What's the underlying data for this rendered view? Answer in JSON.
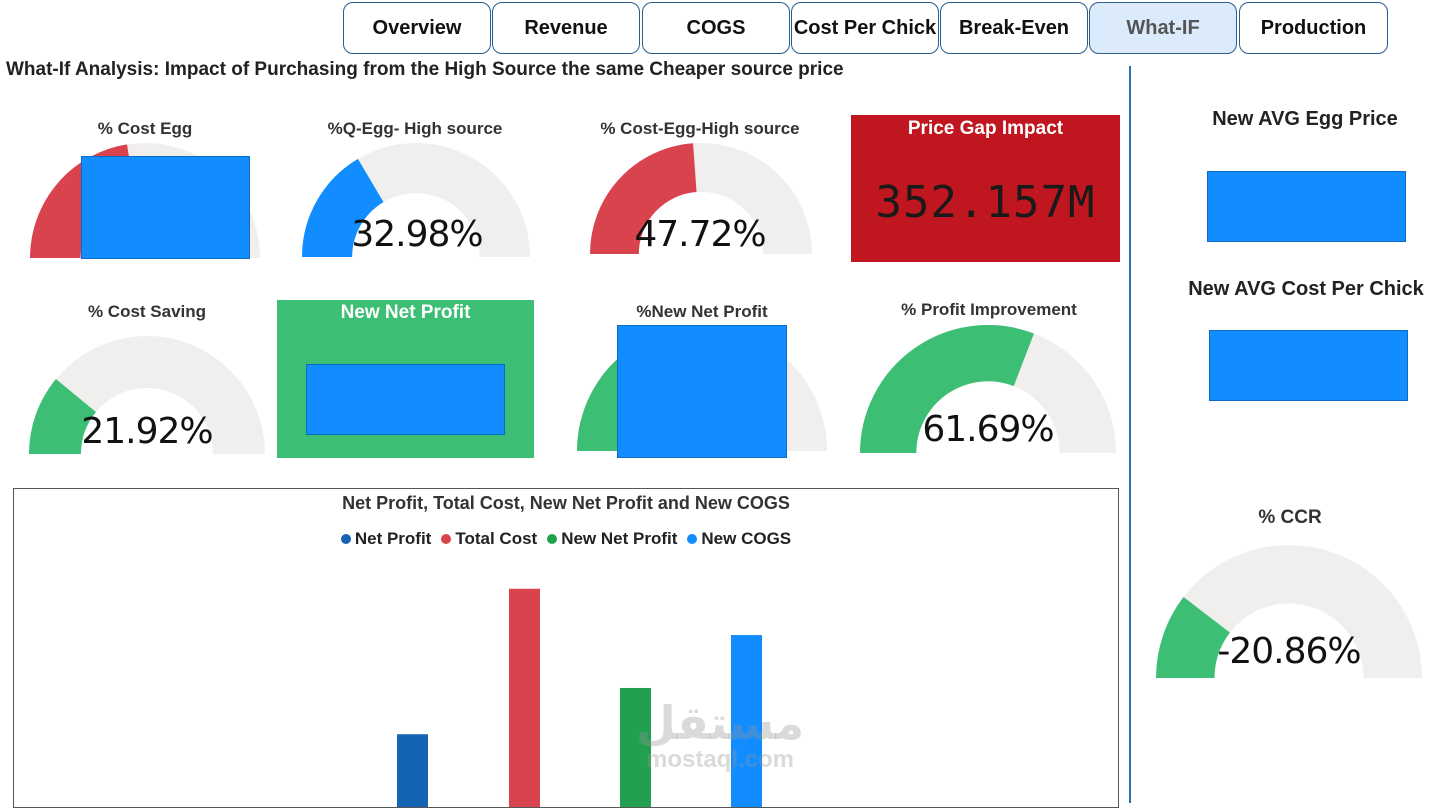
{
  "tabs": [
    {
      "label": "Overview",
      "active": false
    },
    {
      "label": "Revenue",
      "active": false
    },
    {
      "label": "COGS",
      "active": false
    },
    {
      "label": "Cost Per Chick",
      "active": false
    },
    {
      "label": "Break-Even",
      "active": false
    },
    {
      "label": "What-IF",
      "active": true
    },
    {
      "label": "Production",
      "active": false
    }
  ],
  "page_title": "What-If Analysis: Impact of Purchasing from the High Source the same Cheaper source price",
  "gauges": {
    "cost_egg": {
      "title": "% Cost Egg",
      "fill": 0.45,
      "color": "#d9434e"
    },
    "q_egg_high": {
      "title": "%Q-Egg- High source",
      "value": "32.98%",
      "fill": 0.3298,
      "color": "#118dff"
    },
    "cost_egg_high": {
      "title": "% Cost-Egg-High source",
      "value": "47.72%",
      "fill": 0.4772,
      "color": "#d9434e"
    },
    "cost_saving": {
      "title": "% Cost Saving",
      "value": "21.92%",
      "fill": 0.2192,
      "color": "#3cbf74"
    },
    "new_net_profit_pct": {
      "title": "%New Net Profit",
      "fill": 0.3,
      "color": "#3cbf74"
    },
    "profit_improvement": {
      "title": "% Profit Improvement",
      "value": "61.69%",
      "fill": 0.6169,
      "color": "#3cbf74"
    },
    "ccr": {
      "title": "% CCR",
      "value": "-20.86%",
      "fill": 0.2086,
      "color": "#3cbf74"
    }
  },
  "cards": {
    "price_gap": {
      "title": "Price Gap Impact",
      "value": "352.157M",
      "bg": "#c0161f"
    },
    "new_net_profit": {
      "title": "New Net Profit",
      "bg": "#3cbf74"
    }
  },
  "side": {
    "new_avg_egg_price": "New AVG Egg Price",
    "new_avg_cost_per_chick": "New AVG Cost Per Chick"
  },
  "chart_data": {
    "type": "bar",
    "title": "Net Profit, Total Cost, New Net Profit and New COGS",
    "series": [
      {
        "name": "Net Profit",
        "value": 0.22,
        "color": "#1563b3"
      },
      {
        "name": "Total Cost",
        "value": 0.66,
        "color": "#d9434e"
      },
      {
        "name": "New Net Profit",
        "value": 0.36,
        "color": "#21a050"
      },
      {
        "name": "New COGS",
        "value": 0.52,
        "color": "#118dff"
      }
    ],
    "legend_position": "top-center"
  },
  "watermark": {
    "line1": "مستقل",
    "line2": "mostaql.com"
  }
}
